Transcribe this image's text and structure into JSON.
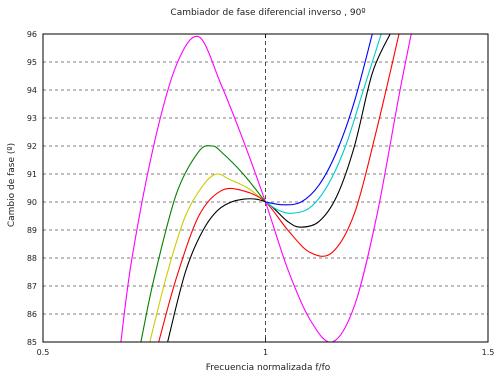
{
  "chart_data": {
    "type": "line",
    "title": "Cambiador de fase diferencial inverso , 90º",
    "xlabel": "Frecuencia normalizada f/fo",
    "ylabel": "Cambio de fase (º)",
    "xlim": [
      0.5,
      1.5
    ],
    "ylim": [
      85,
      96
    ],
    "x_ticks": [
      "0.5",
      "1",
      "1.5"
    ],
    "y_ticks": [
      "85",
      "86",
      "87",
      "88",
      "89",
      "90",
      "91",
      "92",
      "93",
      "94",
      "95",
      "96"
    ],
    "grid": true,
    "reference_line_x": 1,
    "series": [
      {
        "color": "#ff00ff",
        "x": [
          0.675,
          0.7,
          0.75,
          0.8,
          0.85,
          0.9,
          0.95,
          1.0,
          1.05,
          1.1,
          1.15,
          1.2,
          1.25,
          1.3,
          1.33
        ],
        "values": [
          85.0,
          88.0,
          92.1,
          94.9,
          95.9,
          94.2,
          92.2,
          90.0,
          87.6,
          85.8,
          85.0,
          86.3,
          89.5,
          93.8,
          96.2
        ]
      },
      {
        "color": "#008000",
        "x": [
          0.72,
          0.75,
          0.8,
          0.85,
          0.88,
          0.9,
          0.95,
          1.0
        ],
        "values": [
          85.0,
          87.3,
          90.3,
          91.8,
          92.0,
          91.8,
          91.0,
          90.0
        ]
      },
      {
        "color": "#cccc00",
        "x": [
          0.74,
          0.78,
          0.82,
          0.86,
          0.89,
          0.92,
          0.96,
          1.0
        ],
        "values": [
          85.0,
          87.5,
          89.5,
          90.6,
          91.0,
          90.8,
          90.5,
          90.0
        ]
      },
      {
        "color": "#ff0000",
        "x": [
          0.76,
          0.8,
          0.85,
          0.9,
          0.95,
          1.0,
          1.05,
          1.1,
          1.15,
          1.2,
          1.25,
          1.3
        ],
        "values": [
          85.0,
          87.3,
          89.5,
          90.4,
          90.4,
          90.0,
          89.0,
          88.2,
          88.2,
          89.6,
          92.6,
          96.0
        ]
      },
      {
        "color": "#000000",
        "x": [
          0.78,
          0.82,
          0.86,
          0.9,
          0.95,
          1.0,
          1.05,
          1.08,
          1.12,
          1.16,
          1.2,
          1.24,
          1.28
        ],
        "values": [
          85.0,
          87.5,
          89.0,
          89.8,
          90.1,
          90.0,
          89.3,
          89.1,
          89.3,
          90.2,
          92.0,
          94.6,
          96.0
        ]
      },
      {
        "color": "#00cccc",
        "x": [
          1.0,
          1.03,
          1.06,
          1.1,
          1.14,
          1.18,
          1.22,
          1.26
        ],
        "values": [
          90.0,
          89.7,
          89.6,
          89.8,
          90.6,
          92.0,
          94.0,
          96.0
        ]
      },
      {
        "color": "#0000ff",
        "x": [
          1.0,
          1.04,
          1.08,
          1.12,
          1.16,
          1.2,
          1.24
        ],
        "values": [
          90.0,
          89.9,
          90.0,
          90.6,
          91.8,
          93.6,
          96.0
        ]
      }
    ]
  }
}
